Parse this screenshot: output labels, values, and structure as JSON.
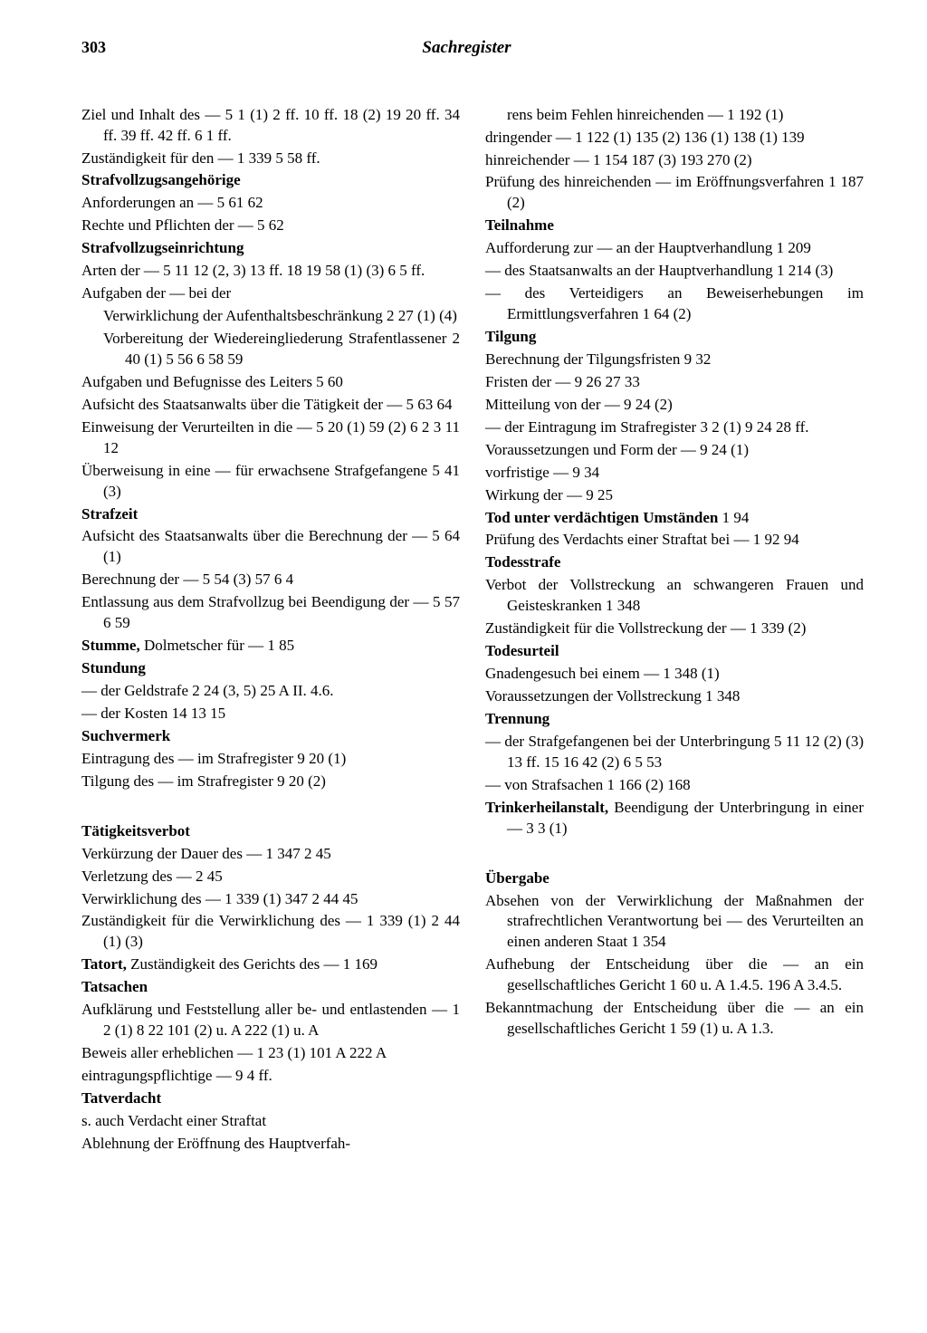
{
  "pageNumber": "303",
  "title": "Sachregister",
  "background_color": "#ffffff",
  "text_color": "#000000",
  "font_family": "Georgia, serif",
  "font_size": 17,
  "leftColumn": [
    {
      "text": "Ziel und Inhalt des — 5 1 (1) 2 ff. 10 ff. 18 (2) 19 20 ff. 34 ff. 39 ff. 42 ff. 6 1 ff."
    },
    {
      "text": "Zuständigkeit für den — 1 339 5 58 ff."
    },
    {
      "text": "Strafvollzugsangehörige",
      "bold": true
    },
    {
      "text": "Anforderungen an — 5 61 62"
    },
    {
      "text": "Rechte und Pflichten der — 5 62"
    },
    {
      "text": "Strafvollzugseinrichtung",
      "bold": true
    },
    {
      "text": "Arten der — 5 11 12 (2, 3) 13 ff. 18 19 58 (1) (3) 6 5 ff."
    },
    {
      "text": "Aufgaben der — bei der"
    },
    {
      "text": "Verwirklichung der Aufenthaltsbe­schränkung 2 27 (1) (4)",
      "indent": true
    },
    {
      "text": "Vorbereitung der Wiedereingliederung Strafentlassener 2 40 (1) 5 56 6 58 59",
      "indent": true
    },
    {
      "text": "Aufgaben und Befugnisse des Leiters 5 60"
    },
    {
      "text": "Aufsicht des Staatsanwalts über die Tätig­keit der — 5 63 64"
    },
    {
      "text": "Einweisung der Verurteilten in die — 5 20 (1) 59 (2) 6 2 3 11 12"
    },
    {
      "text": "Überweisung in eine — für erwachsene Strafgefangene 5 41 (3)"
    },
    {
      "text": "Strafzeit",
      "bold": true
    },
    {
      "text": "Aufsicht des Staatsanwalts über die Be­rechnung der — 5 64 (1)"
    },
    {
      "text": "Berechnung der — 5 54 (3) 57 6 4"
    },
    {
      "text": "Entlassung aus dem Strafvollzug bei Been­digung der — 5 57 6 59"
    },
    {
      "text": "Stumme, Dolmetscher für — 1 85",
      "boldPrefix": "Stumme,"
    },
    {
      "text": "Stundung",
      "bold": true
    },
    {
      "text": "— der Geldstrafe 2 24 (3, 5) 25 A II. 4.6."
    },
    {
      "text": "— der Kosten 14 13 15"
    },
    {
      "text": "Suchvermerk",
      "bold": true
    },
    {
      "text": "Eintragung des — im Strafregister 9 20 (1)"
    },
    {
      "text": "Tilgung des — im Strafregister 9 20 (2)"
    },
    {
      "gap": true
    },
    {
      "text": "Tätigkeitsverbot",
      "bold": true
    },
    {
      "text": "Verkürzung der Dauer des — 1 347 2 45"
    },
    {
      "text": "Verletzung des — 2 45"
    },
    {
      "text": "Verwirklichung des — 1 339 (1) 347 2 44 45"
    },
    {
      "text": "Zuständigkeit für die Verwirklichung des — 1 339 (1) 2 44 (1) (3)"
    },
    {
      "text": "Tatort, Zuständigkeit des Gerichts des — 1 169",
      "boldPrefix": "Tatort,"
    },
    {
      "text": "Tatsachen",
      "bold": true
    },
    {
      "text": "Aufklärung und Feststellung aller be- und entlastenden — 1 2 (1) 8 22 101 (2) u. A 222 (1) u. A"
    },
    {
      "text": "Beweis aller erheblichen — 1 23 (1) 101 A 222 A"
    },
    {
      "text": "eintragungspflichtige — 9 4 ff."
    },
    {
      "text": "Tatverdacht",
      "bold": true
    },
    {
      "text": "s. auch Verdacht einer Straftat"
    },
    {
      "text": "Ablehnung der Eröffnung des Hauptverfah-"
    }
  ],
  "rightColumn": [
    {
      "text": "rens beim Fehlen hinreichenden — 1 192 (1)",
      "indent": true
    },
    {
      "text": "dringender — 1 122 (1) 135 (2) 136 (1) 138 (1) 139"
    },
    {
      "text": "hinreichender — 1 154 187 (3) 193 270 (2)"
    },
    {
      "text": "Prüfung des hinreichenden — im Eröff­nungsverfahren 1 187 (2)"
    },
    {
      "text": "Teilnahme",
      "bold": true
    },
    {
      "text": "Aufforderung zur — an der Hauptverhand­lung 1 209"
    },
    {
      "text": "— des Staatsanwalts an der Hauptverhand­lung 1 214 (3)"
    },
    {
      "text": "— des Verteidigers an Beweiserhebungen im Ermittlungsverfahren 1 64 (2)"
    },
    {
      "text": "Tilgung",
      "bold": true
    },
    {
      "text": "Berechnung der Tilgungsfristen 9 32"
    },
    {
      "text": "Fristen der — 9 26 27 33"
    },
    {
      "text": "Mitteilung von der — 9 24 (2)"
    },
    {
      "text": "— der Eintragung im Strafregister 3 2 (1) 9 24 28 ff."
    },
    {
      "text": "Voraussetzungen und Form der — 9 24 (1)"
    },
    {
      "text": "vorfristige — 9 34"
    },
    {
      "text": "Wirkung der — 9 25"
    },
    {
      "text": "Tod unter verdächtigen Umständen 1 94",
      "boldPrefix": "Tod unter verdächtigen Umständen"
    },
    {
      "text": "Prüfung des Verdachts einer Straftat bei — 1 92 94"
    },
    {
      "text": "Todesstrafe",
      "bold": true
    },
    {
      "text": "Verbot der Vollstreckung an schwangeren Frauen und Geisteskranken 1 348"
    },
    {
      "text": "Zuständigkeit für die Vollstreckung der — 1 339 (2)"
    },
    {
      "text": "Todesurteil",
      "bold": true
    },
    {
      "text": "Gnadengesuch bei einem — 1 348 (1)"
    },
    {
      "text": "Voraussetzungen der Vollstreckung 1 348"
    },
    {
      "text": "Trennung",
      "bold": true
    },
    {
      "text": "— der Strafgefangenen bei der Unterbrin­gung 5 11 12 (2) (3) 13 ff. 15 16 42 (2) 6 5 53"
    },
    {
      "text": "— von Strafsachen 1 166 (2) 168"
    },
    {
      "text": "Trinkerheilanstalt, Beendigung der Unter­bringung in einer — 3 3 (1)",
      "boldPrefix": "Trinkerheilanstalt,"
    },
    {
      "gap": true
    },
    {
      "text": "Übergabe",
      "bold": true
    },
    {
      "text": "Absehen von der Verwirklichung der Maß­nahmen der strafrechtlichen Verantwor­tung bei — des Verurteilten an einen anderen Staat 1 354"
    },
    {
      "text": "Aufhebung der Entscheidung über die — an ein gesellschaftliches Gericht 1 60 u. A 1.4.5. 196 A 3.4.5."
    },
    {
      "text": "Bekanntmachung der Entscheidung über die — an ein gesellschaftliches Gericht 1 59 (1) u. A 1.3."
    }
  ]
}
